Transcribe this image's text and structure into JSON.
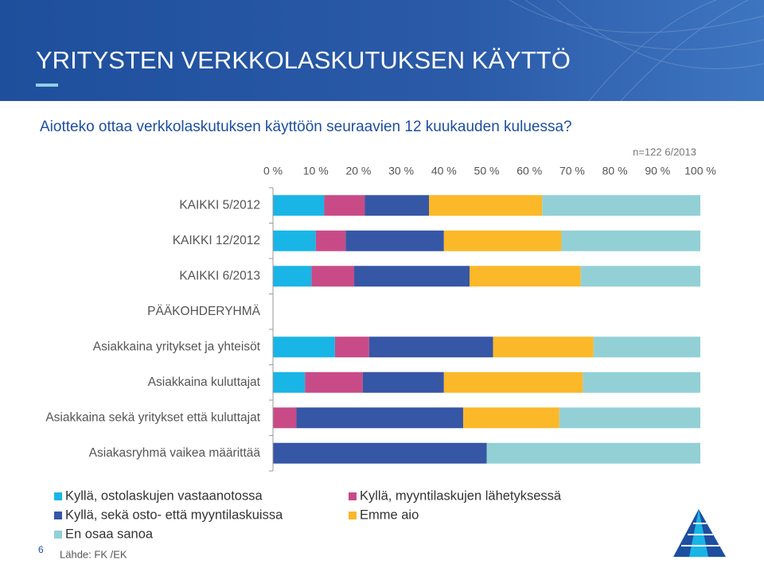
{
  "slide": {
    "title": "YRITYSTEN VERKKOLASKUTUKSEN KÄYTTÖ",
    "subtitle": "Aiotteko ottaa verkkolaskutuksen käyttöön seuraavien 12 kuukauden kuluessa?",
    "page_number": "6",
    "source": "Lähde: FK /EK"
  },
  "chart_data": {
    "type": "stacked_barh",
    "note": "n=122 6/2013",
    "categories": [
      "KAIKKI 5/2012",
      "KAIKKI 12/2012",
      "KAIKKI 6/2013",
      "PÄÄKOHDERYHMÄ",
      "Asiakkaina yritykset ja yhteisöt",
      "Asiakkaina kuluttajat",
      "Asiakkaina sekä yritykset että kuluttajat",
      "Asiakasryhmä vaikea määrittää"
    ],
    "series": [
      {
        "name": "Kyllä, ostolaskujen vastaanotossa",
        "color": "#19b5e6",
        "values": [
          12,
          10,
          9,
          null,
          14.5,
          7.5,
          0,
          0
        ]
      },
      {
        "name": "Kyllä, myyntilaskujen lähetyksessä",
        "color": "#c84b87",
        "values": [
          9.5,
          7,
          10,
          null,
          8,
          13.5,
          5.5,
          0
        ]
      },
      {
        "name": "Kyllä, sekä osto- että myyntilaskuissa",
        "color": "#3656a6",
        "values": [
          15,
          23,
          27,
          null,
          29,
          19,
          39,
          50
        ]
      },
      {
        "name": "Emme aio",
        "color": "#fbb829",
        "values": [
          26.5,
          27.5,
          26,
          null,
          23.5,
          32.5,
          22.5,
          0
        ]
      },
      {
        "name": "En osaa sanoa",
        "color": "#92d0d6",
        "values": [
          37,
          32.5,
          28,
          null,
          25,
          27.5,
          33,
          50
        ]
      }
    ],
    "xlim": [
      0,
      100
    ],
    "xticks": [
      {
        "value": 0,
        "label": "0 %"
      },
      {
        "value": 10,
        "label": "10 %"
      },
      {
        "value": 20,
        "label": "20 %"
      },
      {
        "value": 30,
        "label": "30 %"
      },
      {
        "value": 40,
        "label": "40 %"
      },
      {
        "value": 50,
        "label": "50 %"
      },
      {
        "value": 60,
        "label": "60 %"
      },
      {
        "value": 70,
        "label": "70 %"
      },
      {
        "value": 80,
        "label": "80 %"
      },
      {
        "value": 90,
        "label": "90 %"
      },
      {
        "value": 100,
        "label": "100 %"
      }
    ],
    "grid": false
  }
}
